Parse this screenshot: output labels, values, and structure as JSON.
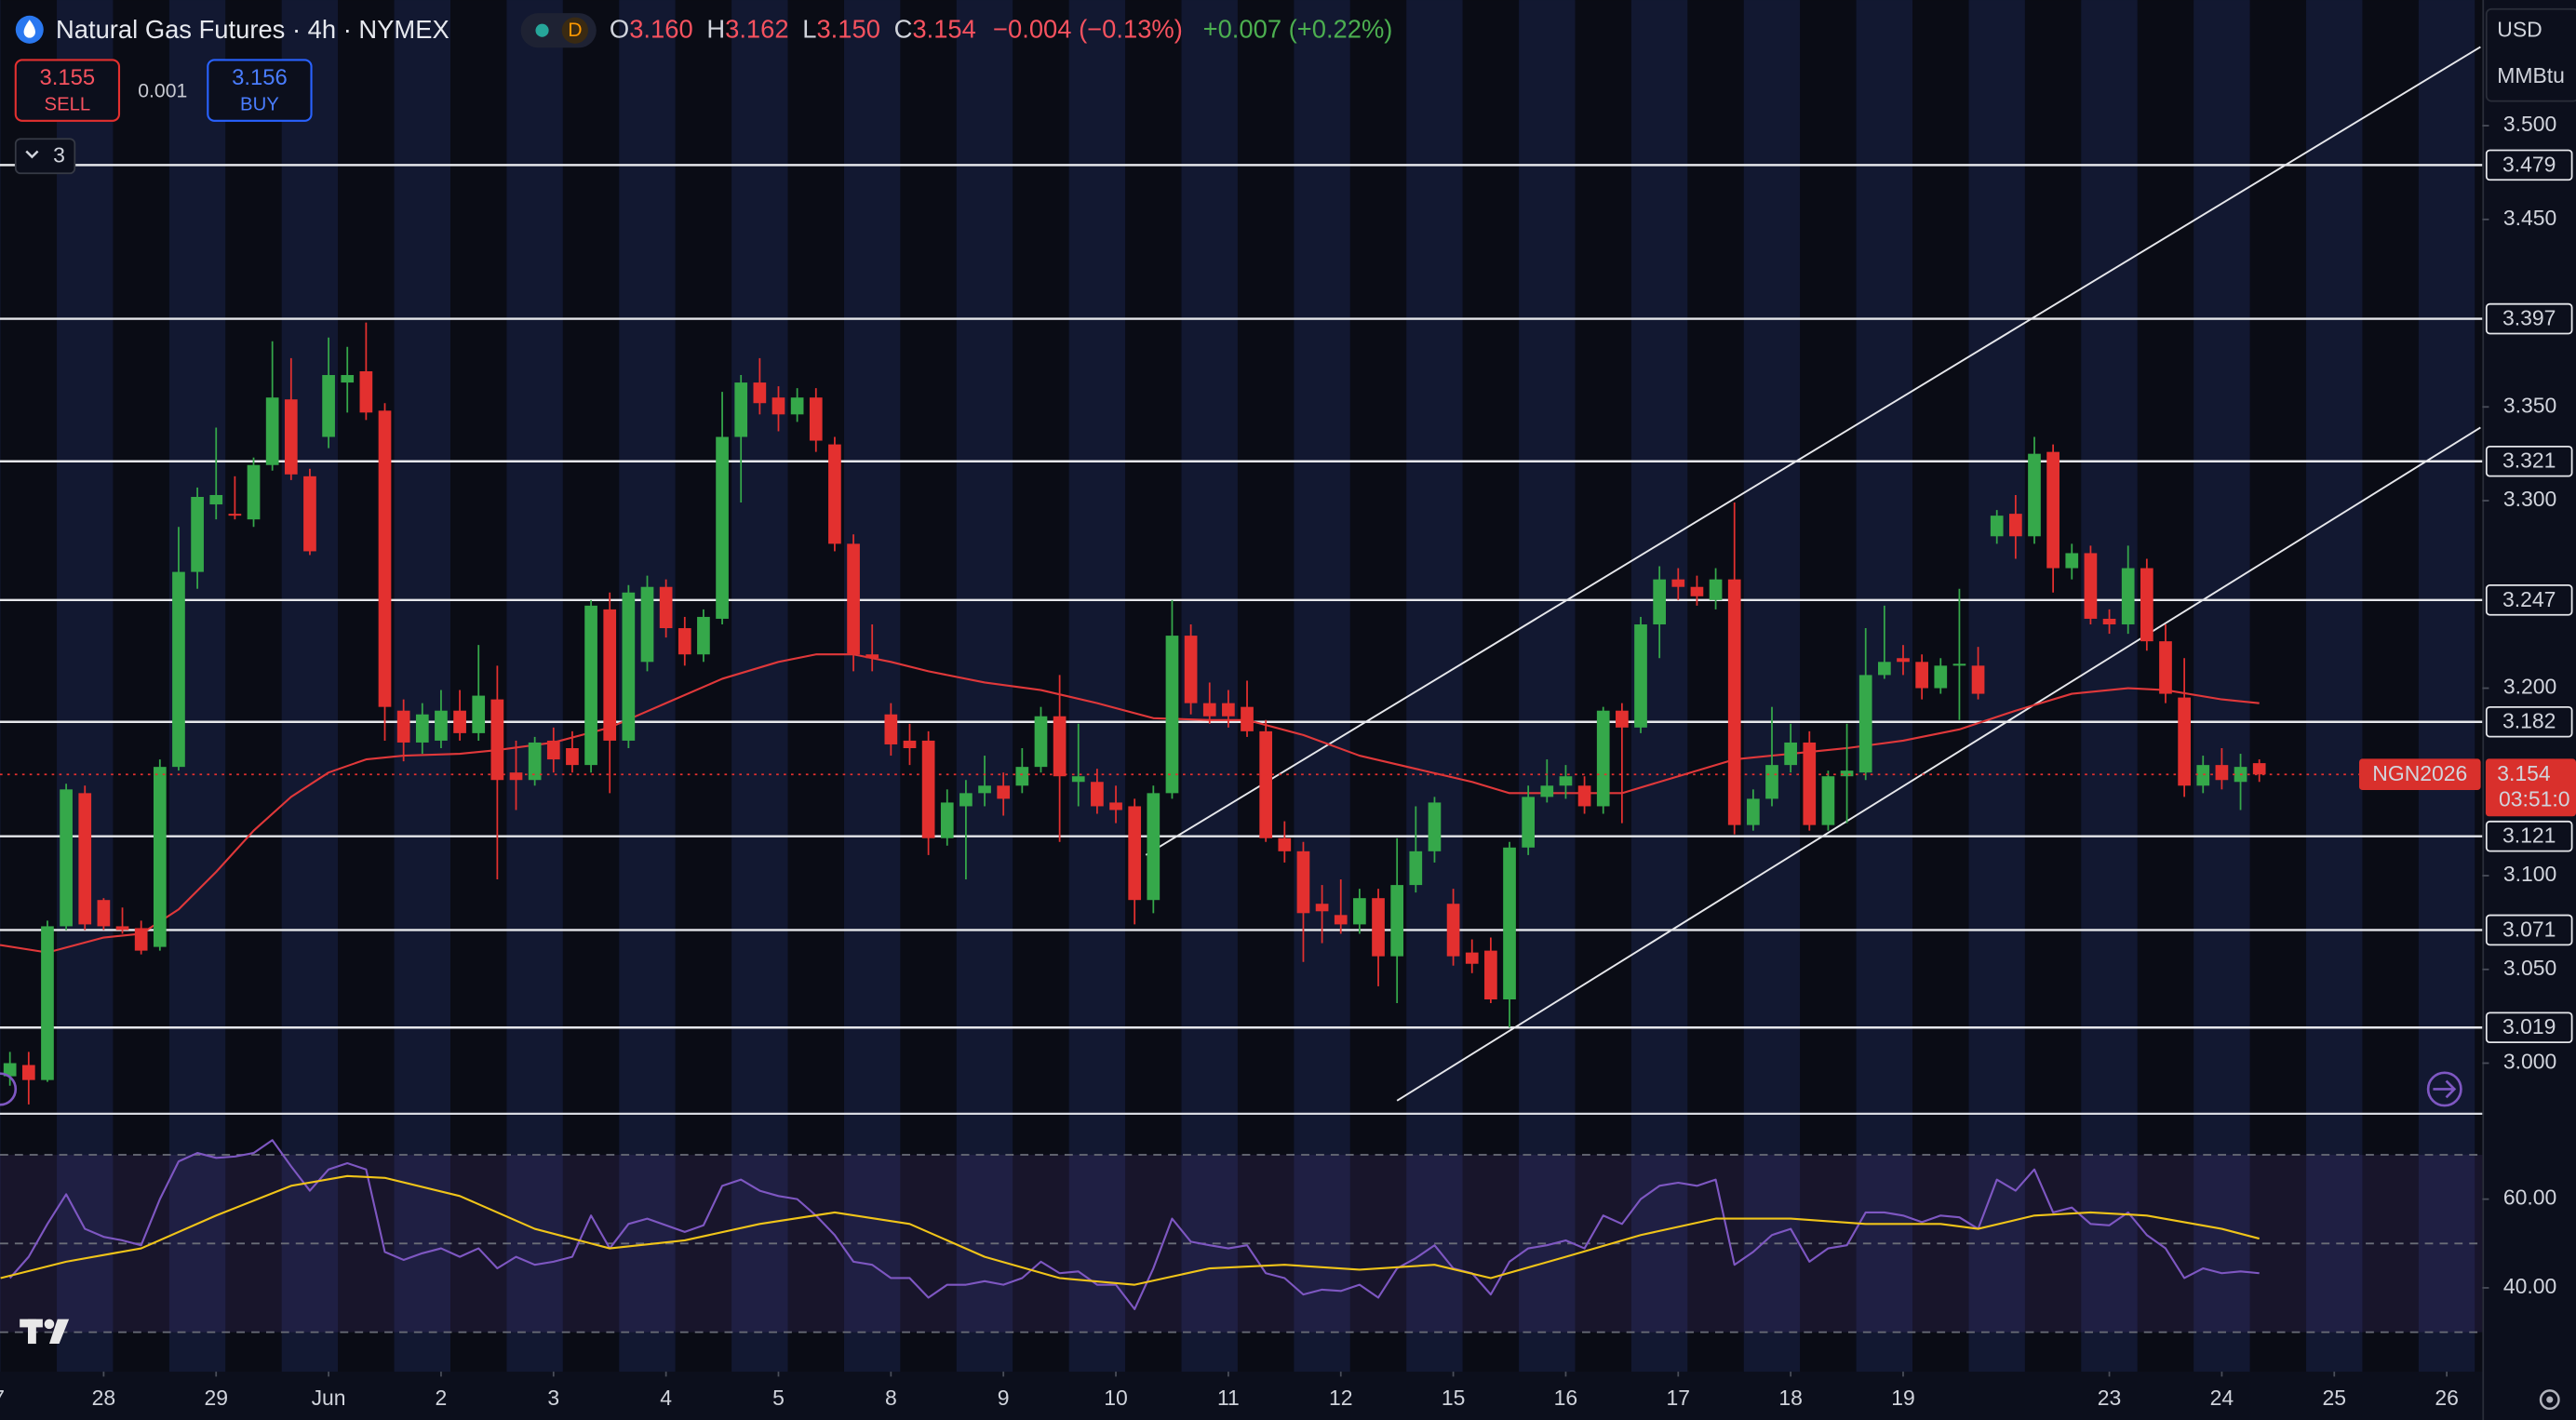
{
  "chart_data": {
    "type": "candlestick",
    "title": "Natural Gas Futures · 4h · NYMEX",
    "interval_badge": "D",
    "ohlc": [
      {
        "label": "O",
        "value": "3.160"
      },
      {
        "label": "H",
        "value": "3.162"
      },
      {
        "label": "L",
        "value": "3.150"
      },
      {
        "label": "C",
        "value": "3.154"
      }
    ],
    "change": "−0.004 (−0.13%)",
    "extended_change": "+0.007 (+0.22%)",
    "quote": {
      "sell": "3.155",
      "sell_label": "SELL",
      "spread": "0.001",
      "buy": "3.156",
      "buy_label": "BUY"
    },
    "indicator_count": "3",
    "unit": [
      "USD",
      "MMBtu"
    ],
    "last": {
      "symbol": "NGN2026",
      "price": "3.154",
      "countdown": "03:51:0"
    },
    "up_color": "#35a84a",
    "down_color": "#e3302f",
    "open": [
      2.993,
      2.999,
      2.991,
      3.073,
      3.144,
      3.087,
      3.073,
      3.072,
      3.062,
      3.158,
      3.262,
      3.298,
      3.293,
      3.29,
      3.319,
      3.354,
      3.313,
      3.334,
      3.363,
      3.369,
      3.348,
      3.188,
      3.171,
      3.172,
      3.188,
      3.176,
      3.194,
      3.155,
      3.151,
      3.172,
      3.168,
      3.159,
      3.242,
      3.172,
      3.214,
      3.254,
      3.232,
      3.218,
      3.237,
      3.334,
      3.363,
      3.355,
      3.346,
      3.355,
      3.33,
      3.277,
      3.218,
      3.186,
      3.172,
      3.172,
      3.12,
      3.137,
      3.144,
      3.148,
      3.148,
      3.158,
      3.185,
      3.15,
      3.15,
      3.139,
      3.137,
      3.087,
      3.144,
      3.228,
      3.192,
      3.192,
      3.19,
      3.177,
      3.12,
      3.113,
      3.085,
      3.079,
      3.074,
      3.088,
      3.057,
      3.095,
      3.113,
      3.085,
      3.059,
      3.06,
      3.034,
      3.115,
      3.142,
      3.148,
      3.148,
      3.137,
      3.188,
      3.179,
      3.234,
      3.258,
      3.254,
      3.247,
      3.258,
      3.127,
      3.141,
      3.159,
      3.171,
      3.127,
      3.153,
      3.155,
      3.207,
      3.216,
      3.214,
      3.2,
      3.212,
      3.212,
      3.281,
      3.293,
      3.281,
      3.326,
      3.264,
      3.272,
      3.237,
      3.234,
      3.264,
      3.225,
      3.195,
      3.148,
      3.159,
      3.15,
      3.16
    ],
    "high": [
      3.006,
      3.006,
      3.076,
      3.149,
      3.148,
      3.088,
      3.083,
      3.076,
      3.162,
      3.286,
      3.307,
      3.339,
      3.313,
      3.323,
      3.385,
      3.376,
      3.317,
      3.387,
      3.382,
      3.395,
      3.352,
      3.194,
      3.192,
      3.199,
      3.199,
      3.223,
      3.212,
      3.172,
      3.174,
      3.179,
      3.177,
      3.247,
      3.251,
      3.255,
      3.26,
      3.258,
      3.238,
      3.242,
      3.358,
      3.367,
      3.376,
      3.361,
      3.36,
      3.36,
      3.334,
      3.282,
      3.234,
      3.192,
      3.181,
      3.177,
      3.146,
      3.151,
      3.164,
      3.155,
      3.168,
      3.19,
      3.207,
      3.181,
      3.157,
      3.148,
      3.141,
      3.148,
      3.247,
      3.234,
      3.203,
      3.199,
      3.204,
      3.183,
      3.129,
      3.118,
      3.095,
      3.098,
      3.093,
      3.093,
      3.12,
      3.137,
      3.142,
      3.093,
      3.066,
      3.067,
      3.118,
      3.148,
      3.162,
      3.159,
      3.153,
      3.19,
      3.192,
      3.238,
      3.265,
      3.264,
      3.26,
      3.264,
      3.299,
      3.146,
      3.19,
      3.181,
      3.177,
      3.156,
      3.181,
      3.232,
      3.244,
      3.223,
      3.218,
      3.216,
      3.253,
      3.222,
      3.295,
      3.303,
      3.334,
      3.33,
      3.277,
      3.276,
      3.242,
      3.276,
      3.269,
      3.234,
      3.216,
      3.164,
      3.168,
      3.165,
      3.162
    ],
    "low": [
      2.988,
      2.978,
      2.99,
      3.071,
      3.071,
      3.071,
      3.069,
      3.058,
      3.06,
      3.156,
      3.253,
      3.29,
      3.29,
      3.286,
      3.316,
      3.311,
      3.271,
      3.328,
      3.347,
      3.343,
      3.172,
      3.161,
      3.165,
      3.168,
      3.172,
      3.172,
      3.098,
      3.135,
      3.148,
      3.155,
      3.155,
      3.155,
      3.144,
      3.168,
      3.209,
      3.227,
      3.212,
      3.214,
      3.234,
      3.299,
      3.346,
      3.337,
      3.342,
      3.326,
      3.273,
      3.209,
      3.209,
      3.164,
      3.159,
      3.111,
      3.116,
      3.098,
      3.137,
      3.132,
      3.144,
      3.155,
      3.118,
      3.137,
      3.133,
      3.128,
      3.074,
      3.08,
      3.141,
      3.186,
      3.181,
      3.179,
      3.174,
      3.118,
      3.107,
      3.054,
      3.064,
      3.069,
      3.069,
      3.041,
      3.032,
      3.091,
      3.107,
      3.052,
      3.048,
      3.032,
      3.019,
      3.111,
      3.139,
      3.141,
      3.133,
      3.133,
      3.128,
      3.176,
      3.216,
      3.247,
      3.244,
      3.242,
      3.122,
      3.124,
      3.137,
      3.155,
      3.124,
      3.124,
      3.128,
      3.151,
      3.205,
      3.207,
      3.194,
      3.197,
      3.183,
      3.194,
      3.277,
      3.269,
      3.277,
      3.251,
      3.258,
      3.234,
      3.229,
      3.229,
      3.22,
      3.192,
      3.142,
      3.144,
      3.146,
      3.135,
      3.15
    ],
    "close": [
      3.0,
      2.991,
      3.073,
      3.146,
      3.074,
      3.073,
      3.071,
      3.06,
      3.158,
      3.262,
      3.302,
      3.303,
      3.292,
      3.319,
      3.355,
      3.314,
      3.273,
      3.367,
      3.367,
      3.347,
      3.19,
      3.171,
      3.186,
      3.188,
      3.176,
      3.196,
      3.151,
      3.151,
      3.171,
      3.162,
      3.159,
      3.244,
      3.172,
      3.251,
      3.254,
      3.232,
      3.218,
      3.238,
      3.334,
      3.363,
      3.352,
      3.346,
      3.355,
      3.332,
      3.277,
      3.218,
      3.216,
      3.17,
      3.168,
      3.12,
      3.139,
      3.144,
      3.148,
      3.141,
      3.158,
      3.185,
      3.153,
      3.153,
      3.137,
      3.135,
      3.087,
      3.144,
      3.228,
      3.192,
      3.185,
      3.185,
      3.177,
      3.12,
      3.113,
      3.08,
      3.081,
      3.074,
      3.088,
      3.057,
      3.095,
      3.113,
      3.139,
      3.057,
      3.053,
      3.034,
      3.115,
      3.142,
      3.148,
      3.153,
      3.137,
      3.188,
      3.179,
      3.234,
      3.258,
      3.254,
      3.249,
      3.258,
      3.127,
      3.141,
      3.159,
      3.171,
      3.127,
      3.153,
      3.156,
      3.207,
      3.214,
      3.214,
      3.2,
      3.212,
      3.213,
      3.197,
      3.292,
      3.281,
      3.325,
      3.264,
      3.272,
      3.237,
      3.234,
      3.264,
      3.225,
      3.197,
      3.148,
      3.159,
      3.151,
      3.158,
      3.154
    ],
    "xlim": [
      -0.53,
      131.9
    ],
    "ylim": [
      2.973,
      3.567
    ],
    "xticks": [
      {
        "value": -0.6,
        "label": "7"
      },
      {
        "value": 5,
        "label": "28"
      },
      {
        "value": 11,
        "label": "29"
      },
      {
        "value": 17,
        "label": "Jun"
      },
      {
        "value": 23,
        "label": "2"
      },
      {
        "value": 29,
        "label": "3"
      },
      {
        "value": 35,
        "label": "4"
      },
      {
        "value": 41,
        "label": "5"
      },
      {
        "value": 47,
        "label": "8"
      },
      {
        "value": 53,
        "label": "9"
      },
      {
        "value": 59,
        "label": "10"
      },
      {
        "value": 65,
        "label": "11"
      },
      {
        "value": 71,
        "label": "12"
      },
      {
        "value": 77,
        "label": "15"
      },
      {
        "value": 83,
        "label": "16"
      },
      {
        "value": 89,
        "label": "17"
      },
      {
        "value": 95,
        "label": "18"
      },
      {
        "value": 101,
        "label": "19"
      },
      {
        "value": 112,
        "label": "23"
      },
      {
        "value": 118,
        "label": "24"
      },
      {
        "value": 124,
        "label": "25"
      },
      {
        "value": 130,
        "label": "26"
      }
    ],
    "yticks": [
      {
        "value": 3.5,
        "label": "3.500"
      },
      {
        "value": 3.45,
        "label": "3.450"
      },
      {
        "value": 3.35,
        "label": "3.350"
      },
      {
        "value": 3.3,
        "label": "3.300"
      },
      {
        "value": 3.2,
        "label": "3.200"
      },
      {
        "value": 3.1,
        "label": "3.100"
      },
      {
        "value": 3.05,
        "label": "3.050"
      },
      {
        "value": 3.0,
        "label": "3.000"
      }
    ],
    "levels": [
      3.479,
      3.397,
      3.321,
      3.247,
      3.182,
      3.121,
      3.071,
      3.019
    ],
    "trendlines": [
      {
        "start": [
          60.6,
          3.111
        ],
        "end": [
          131.8,
          3.542
        ]
      },
      {
        "start": [
          74.0,
          2.98
        ],
        "end": [
          131.8,
          3.339
        ]
      }
    ],
    "ma": {
      "color": "#e0383a",
      "x": [
        -0.53,
        2,
        5,
        7,
        9,
        11,
        13,
        15,
        17,
        19,
        21,
        24,
        26,
        29,
        32,
        35,
        38,
        41,
        43,
        45,
        47,
        49,
        52,
        55,
        58,
        61,
        64,
        66,
        69,
        72,
        75,
        78,
        80,
        83,
        86,
        89,
        92,
        95,
        98,
        101,
        104,
        107,
        110,
        113,
        115,
        118,
        120
      ],
      "values": [
        3.063,
        3.059,
        3.067,
        3.069,
        3.082,
        3.102,
        3.124,
        3.142,
        3.155,
        3.162,
        3.164,
        3.165,
        3.167,
        3.171,
        3.179,
        3.192,
        3.205,
        3.214,
        3.218,
        3.218,
        3.214,
        3.209,
        3.203,
        3.199,
        3.192,
        3.184,
        3.183,
        3.183,
        3.175,
        3.164,
        3.157,
        3.15,
        3.144,
        3.144,
        3.144,
        3.153,
        3.162,
        3.165,
        3.168,
        3.172,
        3.178,
        3.188,
        3.197,
        3.2,
        3.199,
        3.194,
        3.192
      ]
    },
    "rsi": {
      "color": "#7e57c2",
      "ylim": [
        21.1,
        74.8
      ],
      "yticks": [
        {
          "value": 60,
          "label": "60.00"
        },
        {
          "value": 40,
          "label": "40.00"
        }
      ],
      "levels": [
        70,
        50,
        30
      ],
      "values": [
        42.2,
        47.0,
        54.4,
        61.1,
        53.3,
        51.5,
        50.7,
        49.6,
        60.0,
        68.5,
        70.4,
        69.3,
        69.6,
        70.4,
        73.3,
        67.4,
        61.9,
        66.7,
        68.1,
        66.7,
        48.1,
        46.3,
        47.8,
        48.9,
        47.0,
        48.9,
        44.4,
        47.0,
        45.2,
        45.9,
        47.0,
        56.3,
        48.9,
        54.4,
        55.6,
        54.1,
        52.6,
        54.1,
        63.0,
        64.4,
        61.9,
        60.7,
        60.0,
        56.3,
        51.9,
        45.9,
        45.2,
        42.2,
        42.2,
        37.8,
        40.7,
        40.7,
        41.5,
        40.7,
        42.2,
        45.9,
        43.3,
        43.7,
        40.7,
        40.7,
        35.2,
        44.4,
        55.6,
        50.4,
        49.6,
        48.9,
        49.6,
        43.3,
        42.2,
        38.5,
        39.6,
        39.3,
        40.7,
        37.8,
        44.4,
        46.7,
        49.6,
        44.4,
        43.3,
        38.5,
        45.9,
        48.9,
        49.6,
        50.7,
        48.9,
        56.3,
        54.4,
        60.0,
        63.0,
        63.7,
        63.0,
        64.4,
        45.2,
        48.1,
        51.9,
        53.3,
        45.9,
        48.9,
        49.6,
        57.0,
        57.0,
        56.3,
        54.8,
        56.3,
        55.9,
        53.3,
        64.4,
        61.9,
        66.7,
        57.0,
        58.1,
        54.4,
        54.1,
        57.0,
        51.9,
        48.9,
        42.2,
        44.4,
        43.3,
        43.7,
        43.3
      ],
      "ma": {
        "color": "#f0c419",
        "x": [
          -0.5,
          3,
          7,
          11,
          15,
          18,
          20,
          24,
          28,
          32,
          36,
          40,
          44,
          48,
          52,
          56,
          60,
          64,
          68,
          72,
          76,
          79,
          83,
          87,
          91,
          95,
          99,
          103,
          105,
          108,
          111,
          114,
          118,
          120
        ],
        "values": [
          42.2,
          45.9,
          48.9,
          56.3,
          63.0,
          65.2,
          64.8,
          60.7,
          53.3,
          48.9,
          50.7,
          54.4,
          57.0,
          54.4,
          47.0,
          42.2,
          40.7,
          44.4,
          45.2,
          44.1,
          45.2,
          42.2,
          47.0,
          51.9,
          55.6,
          55.6,
          54.4,
          54.4,
          53.3,
          56.3,
          57.0,
          56.3,
          53.3,
          51.1
        ]
      }
    }
  }
}
